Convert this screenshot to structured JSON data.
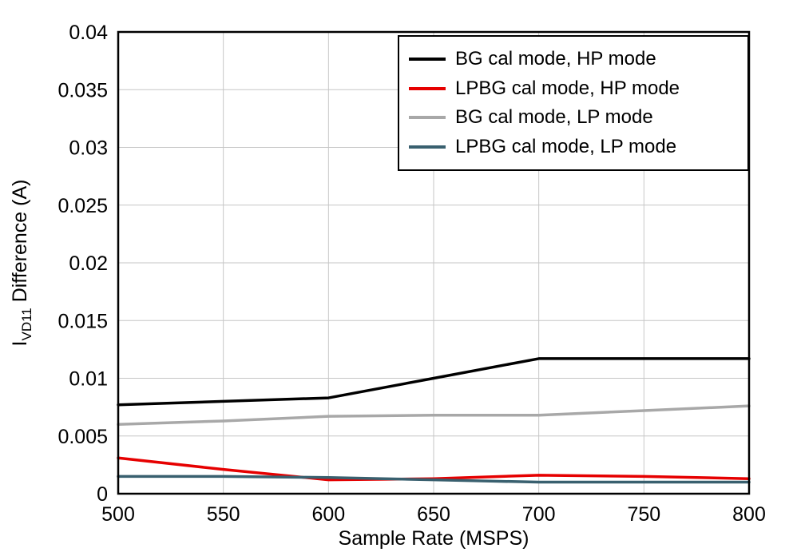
{
  "chart_data": {
    "type": "line",
    "title": "",
    "xlabel": "Sample Rate (MSPS)",
    "ylabel": "IVD11 Difference (A)",
    "ylabel_parts": {
      "prefix": "I",
      "sub": "VD11",
      "suffix": " Difference (A)"
    },
    "xlim": [
      500,
      800
    ],
    "ylim": [
      0,
      0.04
    ],
    "grid": true,
    "grid_color": "#c6c6c6",
    "frame_color": "#000000",
    "legend_position": "top-right",
    "x": [
      500,
      550,
      600,
      650,
      700,
      750,
      800
    ],
    "xticks": [
      {
        "v": 500,
        "label": "500"
      },
      {
        "v": 550,
        "label": "550"
      },
      {
        "v": 600,
        "label": "600"
      },
      {
        "v": 650,
        "label": "650"
      },
      {
        "v": 700,
        "label": "700"
      },
      {
        "v": 750,
        "label": "750"
      },
      {
        "v": 800,
        "label": "800"
      }
    ],
    "yticks": [
      {
        "v": 0,
        "label": "0"
      },
      {
        "v": 0.005,
        "label": "0.005"
      },
      {
        "v": 0.01,
        "label": "0.01"
      },
      {
        "v": 0.015,
        "label": "0.015"
      },
      {
        "v": 0.02,
        "label": "0.02"
      },
      {
        "v": 0.025,
        "label": "0.025"
      },
      {
        "v": 0.03,
        "label": "0.03"
      },
      {
        "v": 0.035,
        "label": "0.035"
      },
      {
        "v": 0.04,
        "label": "0.04"
      }
    ],
    "series": [
      {
        "id": "bg-cal-hp",
        "name": "BG cal mode, HP mode",
        "color": "#000000",
        "values": [
          0.0077,
          0.008,
          0.0083,
          0.01,
          0.0117,
          0.0117,
          0.0117
        ]
      },
      {
        "id": "lpbg-cal-hp",
        "name": "LPBG cal mode, HP mode",
        "color": "#e60000",
        "values": [
          0.0031,
          0.0021,
          0.0012,
          0.0013,
          0.0016,
          0.0015,
          0.0013
        ]
      },
      {
        "id": "bg-cal-lp",
        "name": "BG cal mode, LP mode",
        "color": "#a8a8a8",
        "values": [
          0.006,
          0.0063,
          0.0067,
          0.0068,
          0.0068,
          0.0072,
          0.0076
        ]
      },
      {
        "id": "lpbg-cal-lp",
        "name": "LPBG cal mode, LP mode",
        "color": "#39606f",
        "values": [
          0.0015,
          0.0015,
          0.0014,
          0.0012,
          0.001,
          0.001,
          0.001
        ]
      }
    ]
  }
}
